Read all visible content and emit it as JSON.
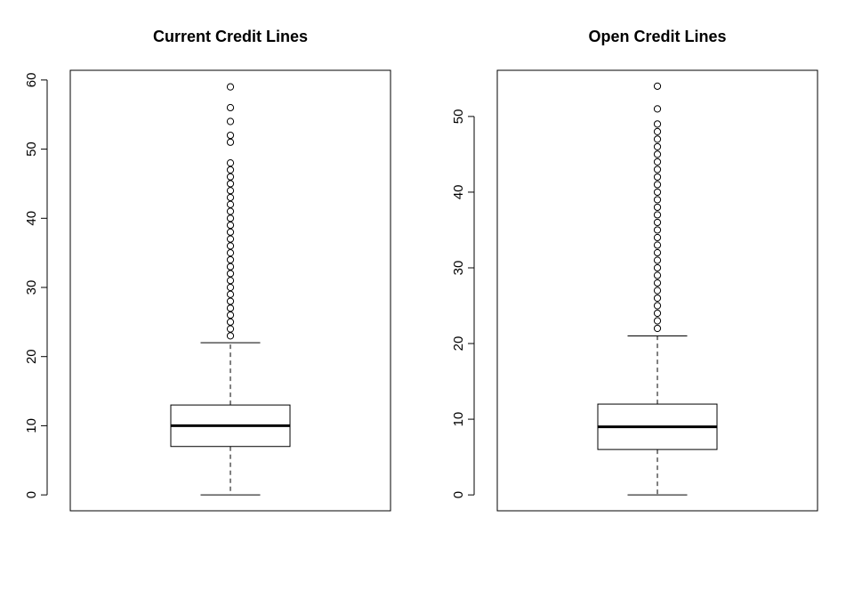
{
  "chart_data": [
    {
      "type": "boxplot",
      "title": "Current Credit Lines",
      "xlabel": "",
      "ylabel": "",
      "ylim": [
        -2.3,
        61.4
      ],
      "yticks": [
        0,
        10,
        20,
        30,
        40,
        50,
        60
      ],
      "yticklabels": [
        "0",
        "10",
        "20",
        "30",
        "40",
        "50",
        "60"
      ],
      "grid": false,
      "box": {
        "lower_whisker": 0,
        "q1": 7,
        "median": 10,
        "q3": 13,
        "upper_whisker": 22
      },
      "outliers": [
        23,
        24,
        25,
        26,
        27,
        28,
        29,
        30,
        31,
        32,
        33,
        34,
        35,
        36,
        37,
        38,
        39,
        40,
        41,
        42,
        43,
        44,
        45,
        46,
        47,
        48,
        51,
        52,
        54,
        56,
        59
      ]
    },
    {
      "type": "boxplot",
      "title": "Open Credit Lines",
      "xlabel": "",
      "ylabel": "",
      "ylim": [
        -2.1,
        56.1
      ],
      "yticks": [
        0,
        10,
        20,
        30,
        40,
        50
      ],
      "yticklabels": [
        "0",
        "10",
        "20",
        "30",
        "40",
        "50"
      ],
      "grid": false,
      "box": {
        "lower_whisker": 0,
        "q1": 6,
        "median": 9,
        "q3": 12,
        "upper_whisker": 21
      },
      "outliers": [
        22,
        23,
        24,
        25,
        26,
        27,
        28,
        29,
        30,
        31,
        32,
        33,
        34,
        35,
        36,
        37,
        38,
        39,
        40,
        41,
        42,
        43,
        44,
        45,
        46,
        47,
        48,
        49,
        51,
        54
      ]
    }
  ]
}
